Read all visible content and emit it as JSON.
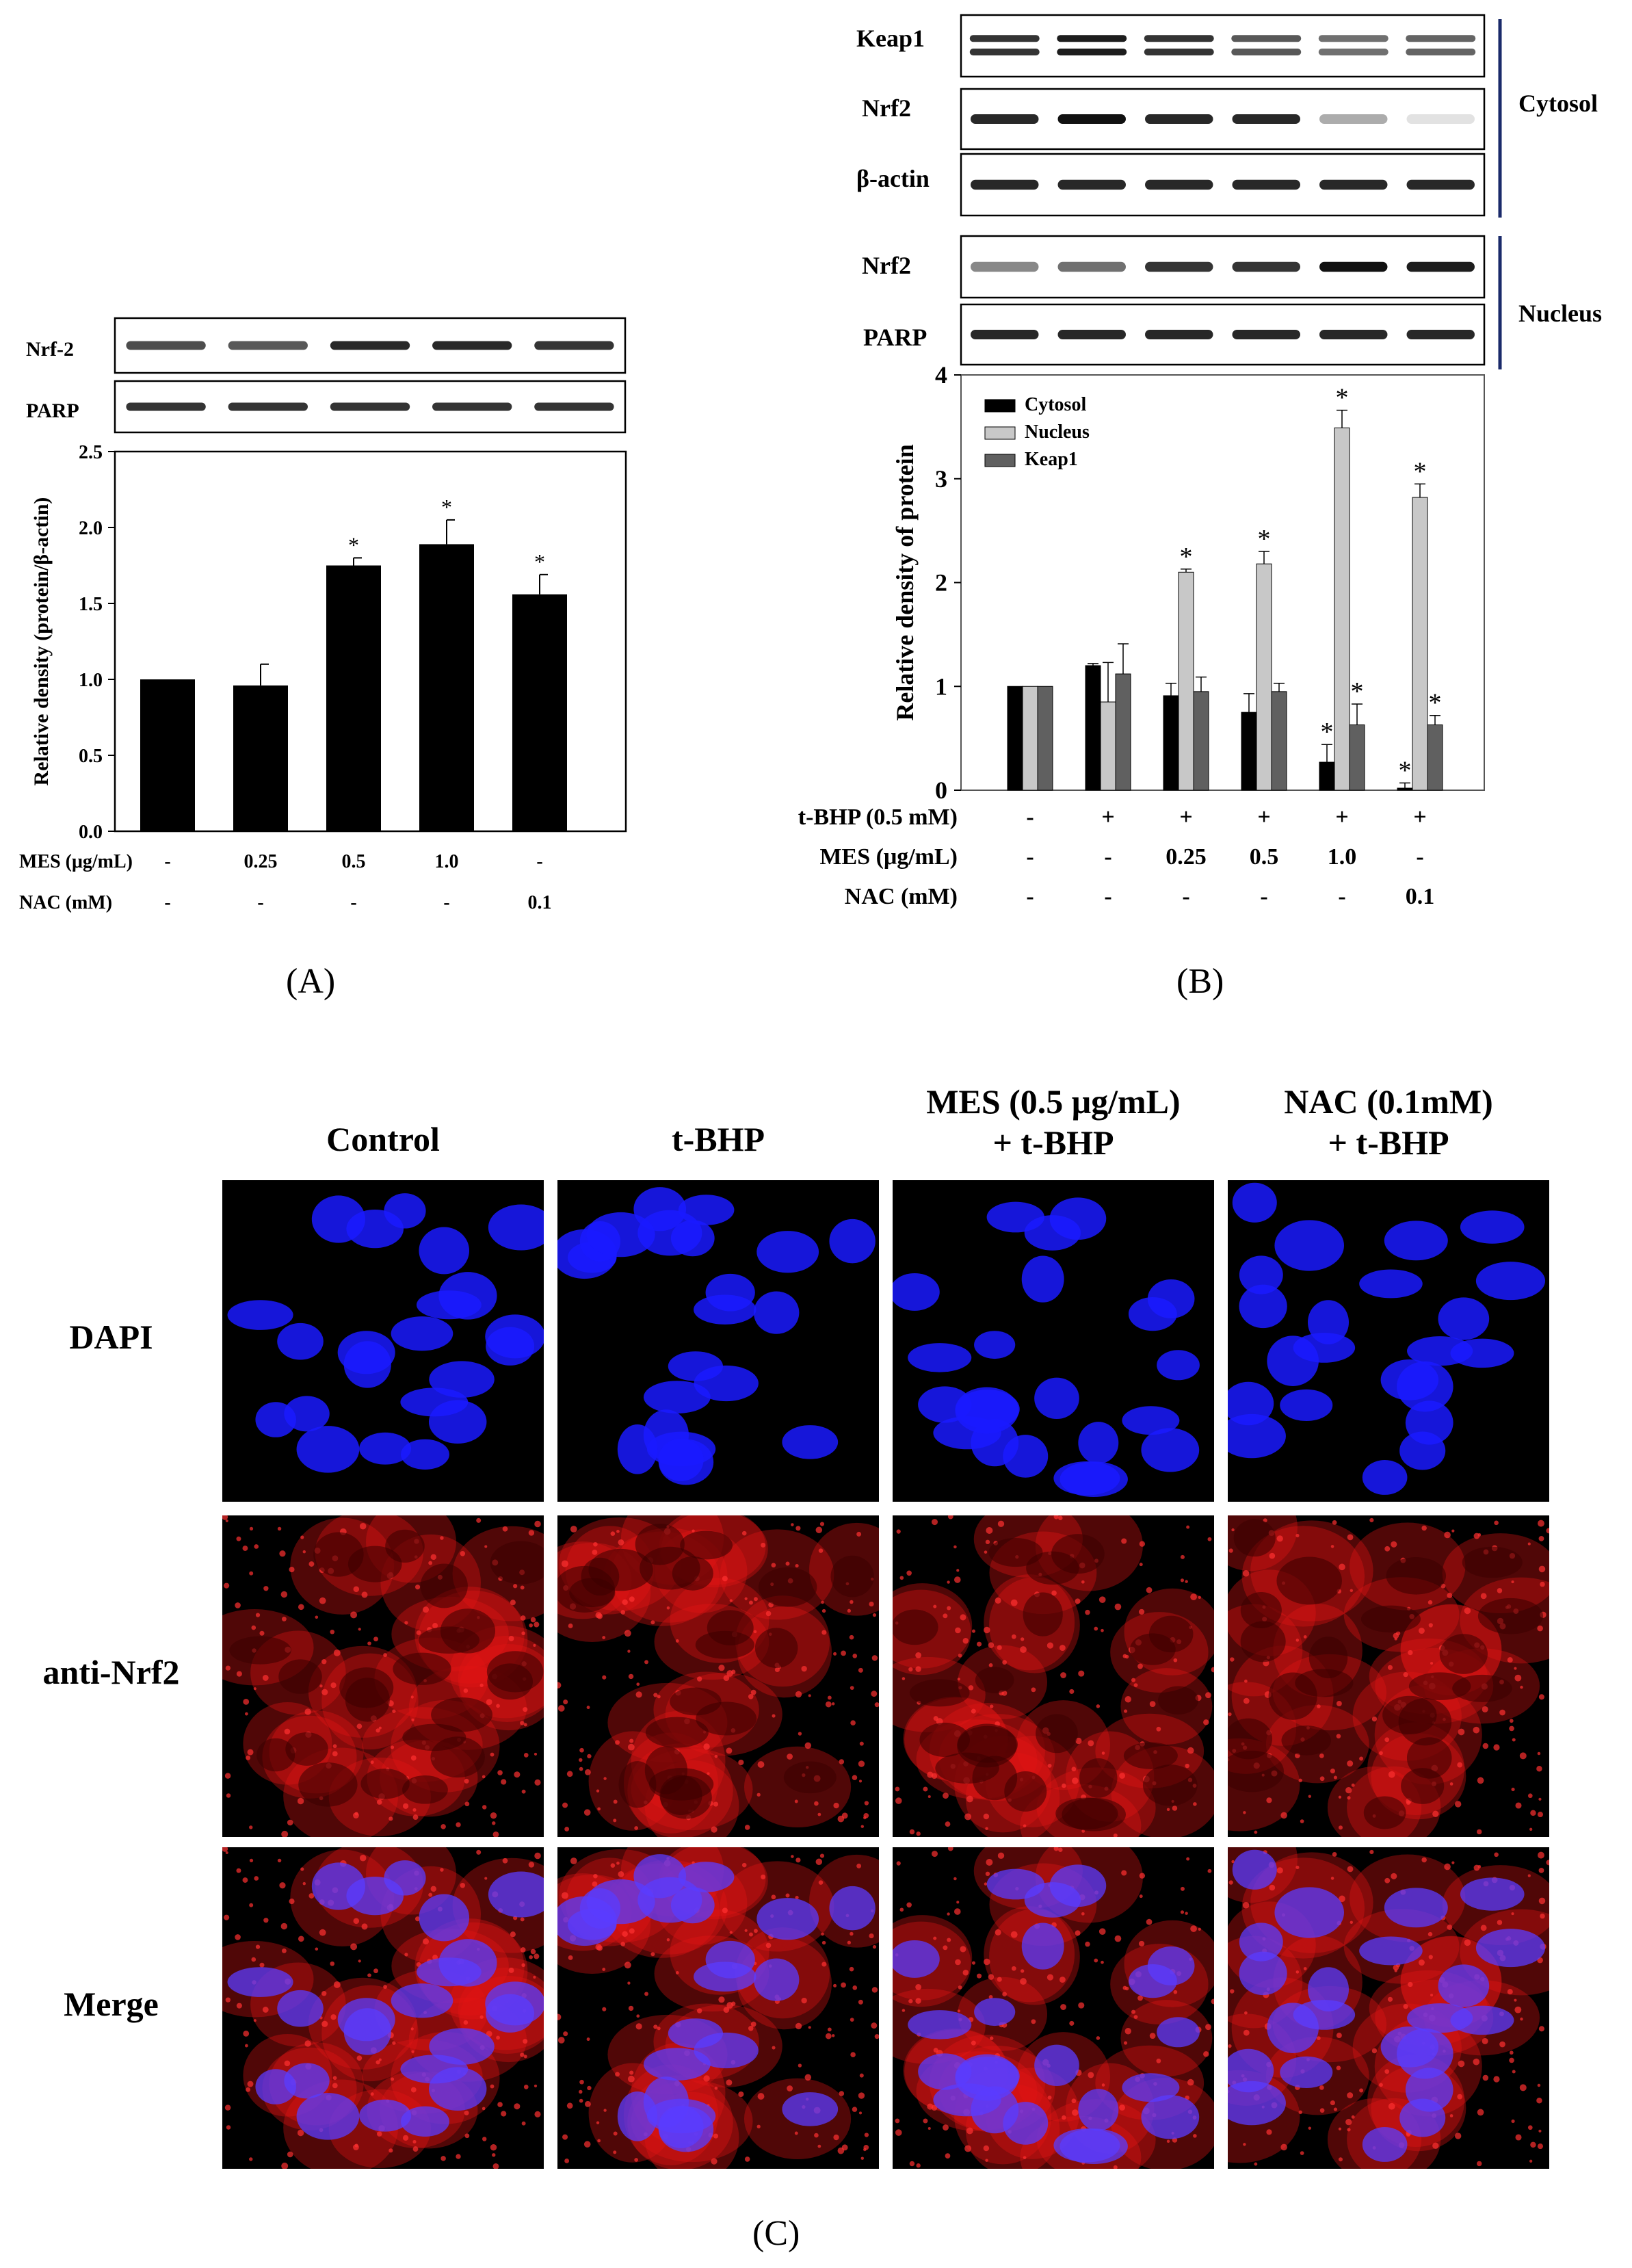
{
  "panel_labels": {
    "A": "(A)",
    "B": "(B)",
    "C": "(C)"
  },
  "colors": {
    "black": "#000000",
    "light_gray": "#c8c8c8",
    "dark_gray": "#606060",
    "blue": "#1a1aff",
    "red": "#e61414"
  },
  "blots_a": {
    "labels": [
      "Nrf-2",
      "PARP"
    ]
  },
  "blots_b": {
    "labels": [
      "Keap1",
      "Nrf2",
      "β-actin",
      "Nrf2",
      "PARP"
    ],
    "groups": [
      "Cytosol",
      "Nucleus"
    ]
  },
  "chart_data": [
    {
      "type": "bar",
      "ylabel": "Relative density (protein/β-actin)",
      "ylim": [
        0,
        2.5
      ],
      "yticks": [
        "0.0",
        "0.5",
        "1.0",
        "1.5",
        "2.0",
        "2.5"
      ],
      "series": [
        {
          "values": [
            1.0,
            0.96,
            1.75,
            1.89,
            1.56
          ],
          "errors": [
            0,
            0.14,
            0.05,
            0.16,
            0.13
          ],
          "significant": [
            false,
            false,
            true,
            true,
            true
          ]
        }
      ],
      "treatments": [
        {
          "label": "MES (μg/mL)",
          "values": [
            "-",
            "0.25",
            "0.5",
            "1.0",
            "-"
          ]
        },
        {
          "label": "NAC (mM)",
          "values": [
            "-",
            "-",
            "-",
            "-",
            "0.1"
          ]
        }
      ],
      "grid": false
    },
    {
      "type": "bar",
      "ylabel": "Relative density of protein",
      "ylim": [
        0,
        4
      ],
      "yticks": [
        "0",
        "1",
        "2",
        "3",
        "4"
      ],
      "legend_position": "top-left",
      "series": [
        {
          "name": "Cytosol",
          "color": "#000000",
          "values": [
            1.0,
            1.2,
            0.91,
            0.75,
            0.27,
            0.02
          ],
          "errors": [
            0,
            0.02,
            0.12,
            0.18,
            0.17,
            0.05
          ],
          "significant": [
            false,
            false,
            false,
            false,
            true,
            true
          ]
        },
        {
          "name": "Nucleus",
          "color": "#c8c8c8",
          "values": [
            1.0,
            0.85,
            2.1,
            2.18,
            3.49,
            2.82
          ],
          "errors": [
            0,
            0.38,
            0.03,
            0.12,
            0.17,
            0.13
          ],
          "significant": [
            false,
            false,
            true,
            true,
            true,
            true
          ]
        },
        {
          "name": "Keap1",
          "color": "#606060",
          "values": [
            1.0,
            1.12,
            0.95,
            0.95,
            0.63,
            0.63
          ],
          "errors": [
            0,
            0.29,
            0.14,
            0.08,
            0.2,
            0.09
          ],
          "significant": [
            false,
            false,
            false,
            false,
            true,
            true
          ]
        }
      ],
      "treatments": [
        {
          "label": "t-BHP (0.5 mM)",
          "values": [
            "-",
            "+",
            "+",
            "+",
            "+",
            "+"
          ]
        },
        {
          "label": "MES (μg/mL)",
          "values": [
            "-",
            "-",
            "0.25",
            "0.5",
            "1.0",
            "-"
          ]
        },
        {
          "label": "NAC (mM)",
          "values": [
            "-",
            "-",
            "-",
            "-",
            "-",
            "0.1"
          ]
        }
      ],
      "grid": false
    }
  ],
  "microscopy": {
    "columns": [
      "Control",
      "t-BHP",
      "MES (0.5 μg/mL)\n+ t-BHP",
      "NAC (0.1mM)\n+ t-BHP"
    ],
    "rows": [
      "DAPI",
      "anti-Nrf2",
      "Merge"
    ]
  }
}
